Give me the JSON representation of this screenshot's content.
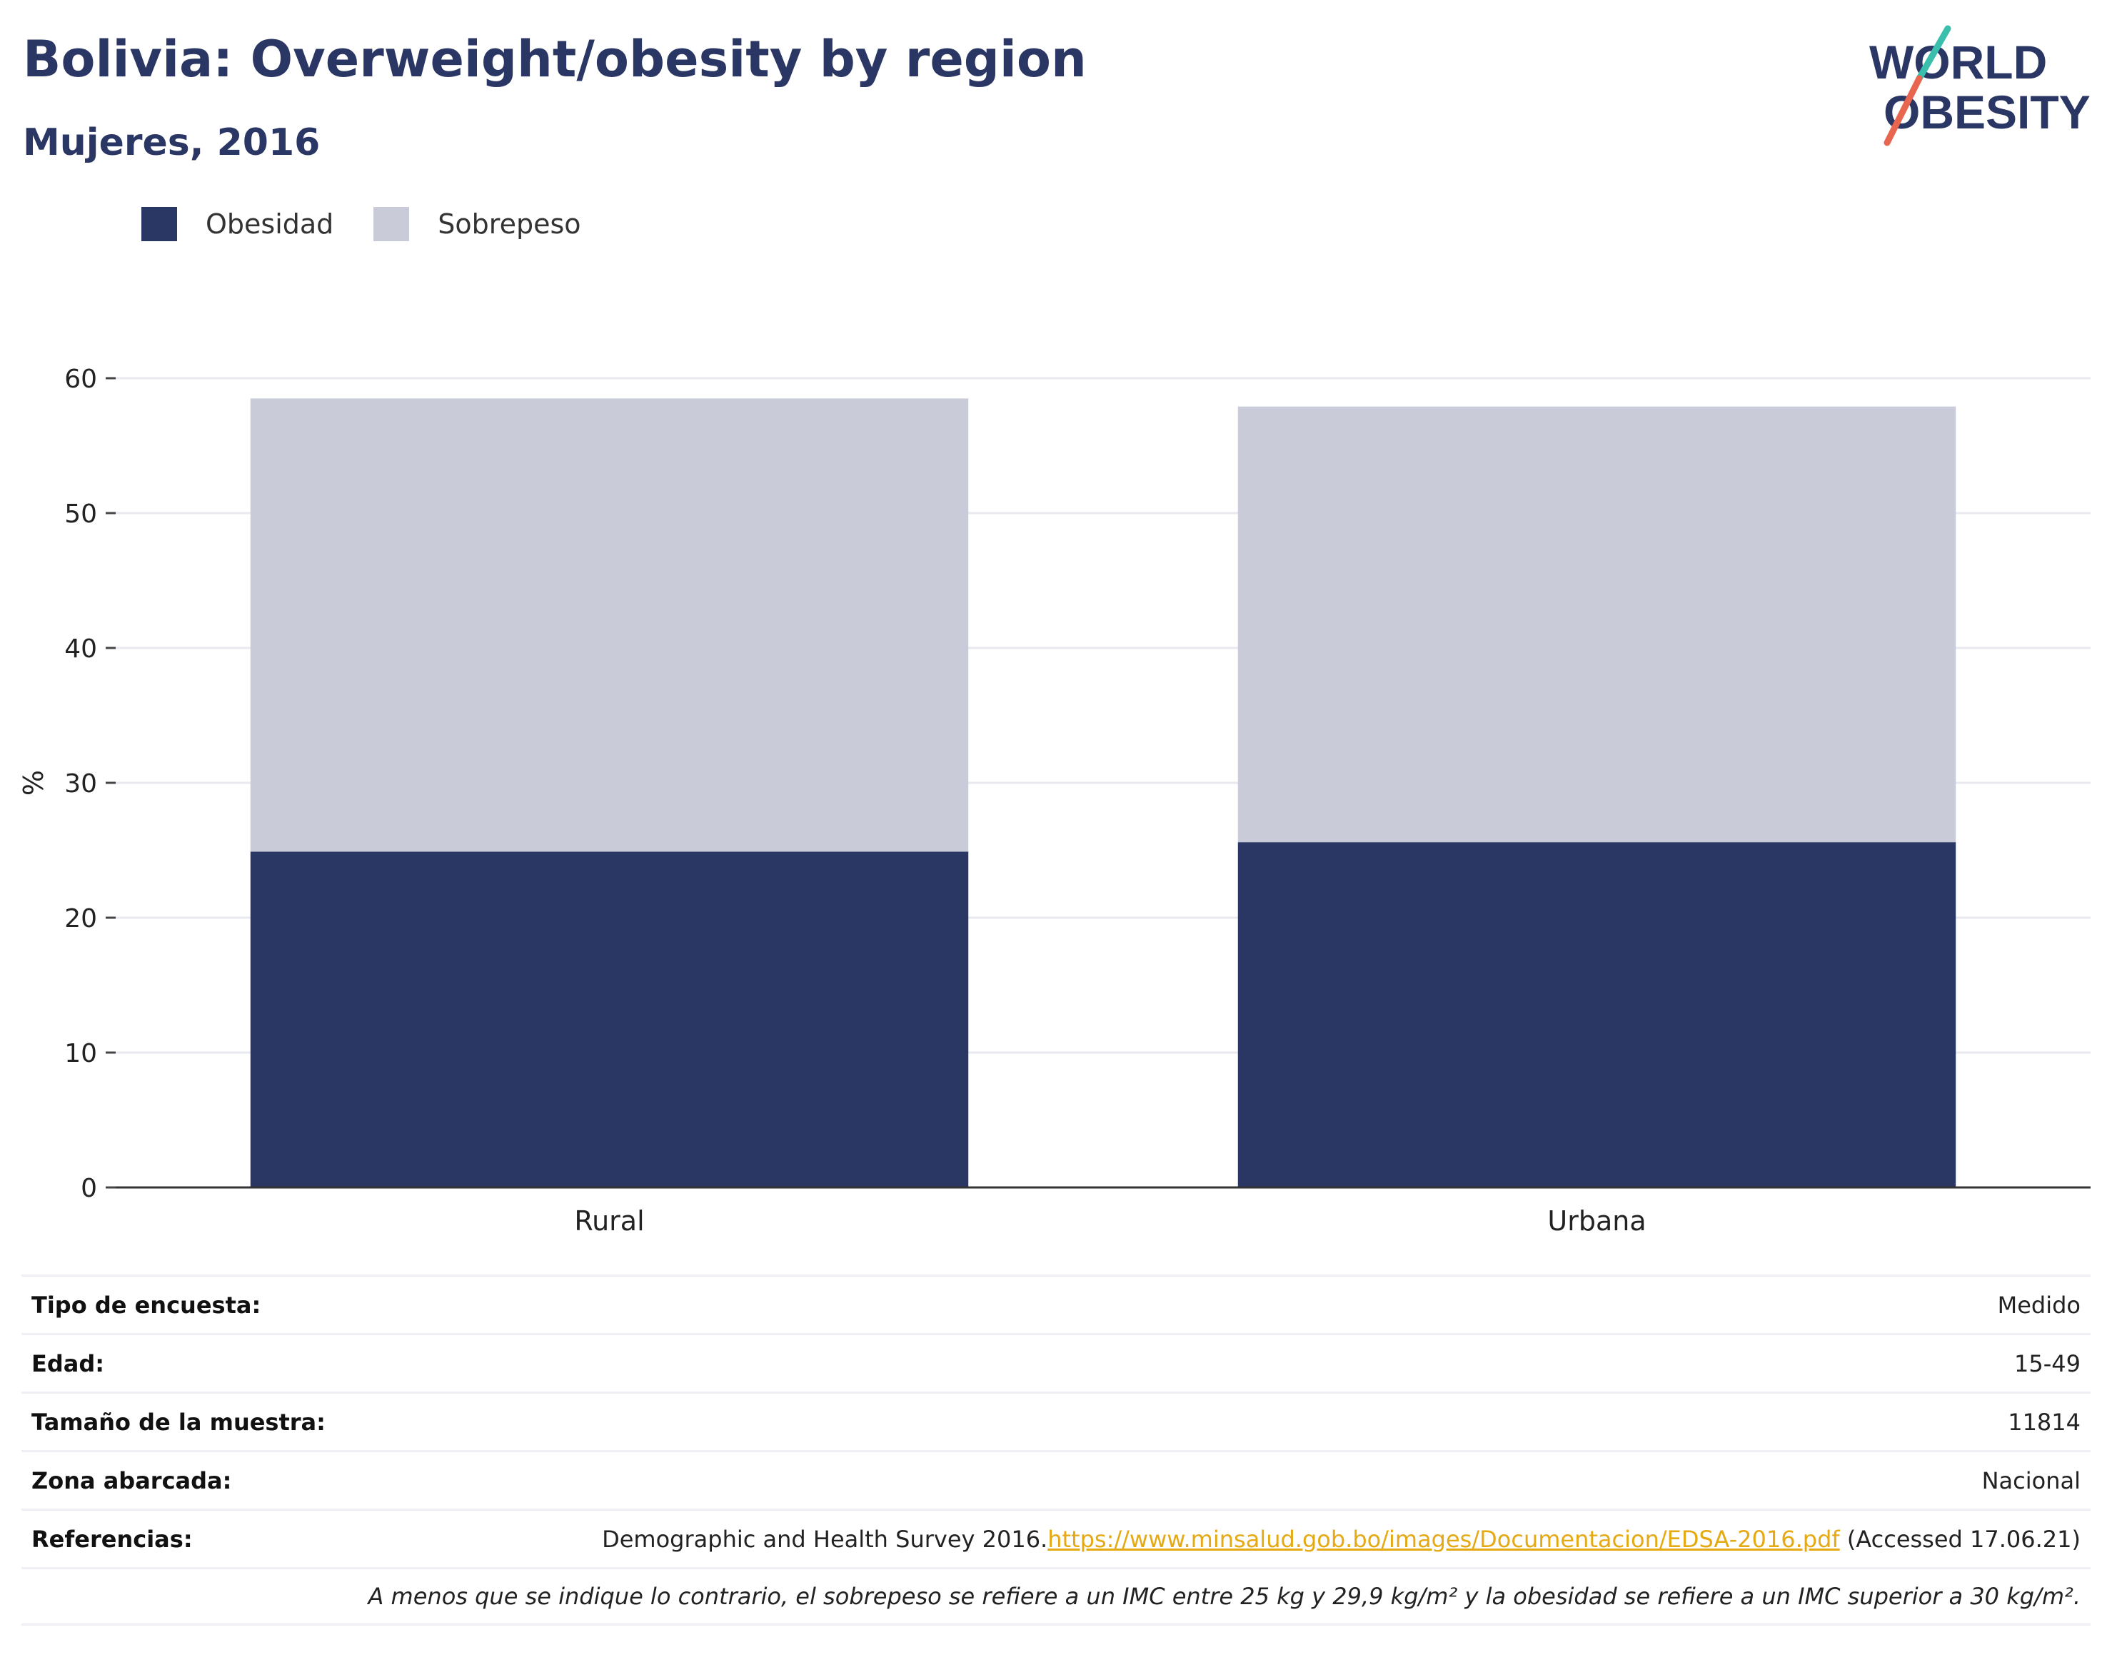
{
  "header": {
    "title": "Bolivia: Overweight/obesity by region",
    "subtitle": "Mujeres, 2016"
  },
  "logo": {
    "line1": "WORLD",
    "line2": "OBESITY"
  },
  "colors": {
    "obesidad": "#2a3663",
    "sobrepeso": "#c9ccd8",
    "link": "#e5a913",
    "title": "#2a3663"
  },
  "chart_data": {
    "type": "bar",
    "stacked": true,
    "categories": [
      "Rural",
      "Urbana"
    ],
    "series": [
      {
        "name": "Obesidad",
        "values": [
          24.9,
          25.6
        ]
      },
      {
        "name": "Sobrepeso",
        "values": [
          33.6,
          32.3
        ]
      }
    ],
    "ylabel": "%",
    "ylim": [
      0,
      60
    ],
    "yticks": [
      0,
      10,
      20,
      30,
      40,
      50,
      60
    ],
    "grid": true,
    "legend": "top-left"
  },
  "info": {
    "rows": [
      {
        "label": "Tipo de encuesta:",
        "value": "Medido"
      },
      {
        "label": "Edad:",
        "value": "15-49"
      },
      {
        "label": "Tamaño de la muestra:",
        "value": "11814"
      },
      {
        "label": "Zona abarcada:",
        "value": "Nacional"
      }
    ],
    "references": {
      "label": "Referencias:",
      "prefix": "Demographic and Health Survey 2016.",
      "link": "https://www.minsalud.gob.bo/images/Documentacion/EDSA-2016.pdf",
      "suffix": " (Accessed 17.06.21)"
    },
    "note": "A menos que se indique lo contrario, el sobrepeso se refiere a un IMC entre 25 kg y 29,9 kg/m² y la obesidad se refiere a un IMC superior a 30 kg/m²."
  }
}
